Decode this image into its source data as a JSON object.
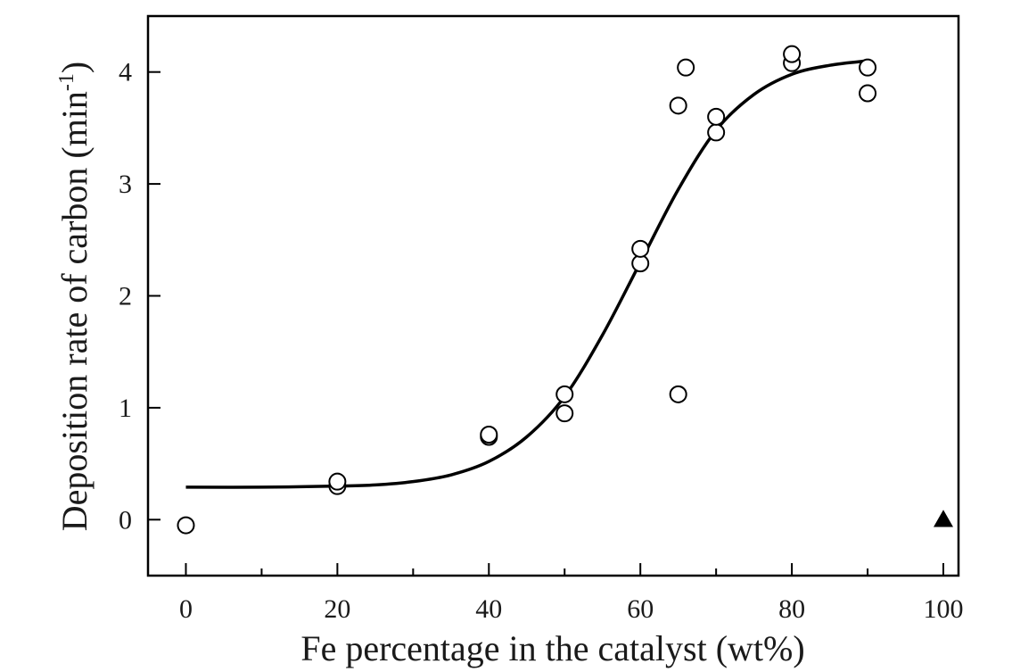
{
  "chart_data": {
    "type": "scatter",
    "title": "",
    "xlabel": "Fe percentage in the catalyst (wt%)",
    "ylabel": "Deposition rate of carbon (min",
    "ylabel_sup": "-1",
    "ylabel_close": ")",
    "xlim": [
      -5,
      102
    ],
    "ylim": [
      -0.5,
      4.5
    ],
    "xticks": [
      0,
      20,
      40,
      60,
      80,
      100
    ],
    "yticks": [
      0,
      1,
      2,
      3,
      4
    ],
    "x_minor_step": 10,
    "grid": false,
    "legend": "none",
    "series": [
      {
        "marker": "open-circle",
        "color": "#000000",
        "points": [
          {
            "x": 0,
            "y": -0.05
          },
          {
            "x": 20,
            "y": 0.3
          },
          {
            "x": 20,
            "y": 0.34
          },
          {
            "x": 40,
            "y": 0.74
          },
          {
            "x": 40,
            "y": 0.76
          },
          {
            "x": 50,
            "y": 0.95
          },
          {
            "x": 50,
            "y": 1.12
          },
          {
            "x": 60,
            "y": 2.29
          },
          {
            "x": 60,
            "y": 2.42
          },
          {
            "x": 65,
            "y": 1.12
          },
          {
            "x": 65,
            "y": 3.7
          },
          {
            "x": 66,
            "y": 4.04
          },
          {
            "x": 70,
            "y": 3.46
          },
          {
            "x": 70,
            "y": 3.6
          },
          {
            "x": 80,
            "y": 4.08
          },
          {
            "x": 80,
            "y": 4.16
          },
          {
            "x": 90,
            "y": 4.04
          },
          {
            "x": 90,
            "y": 3.81
          }
        ]
      },
      {
        "marker": "filled-triangle",
        "color": "#000000",
        "points": [
          {
            "x": 100,
            "y": 0.0
          }
        ]
      }
    ],
    "fit_curve": {
      "type": "sigmoid",
      "color": "#000000",
      "points": [
        {
          "x": 0,
          "y": 0.29
        },
        {
          "x": 10,
          "y": 0.29
        },
        {
          "x": 20,
          "y": 0.3
        },
        {
          "x": 25,
          "y": 0.31
        },
        {
          "x": 30,
          "y": 0.34
        },
        {
          "x": 35,
          "y": 0.4
        },
        {
          "x": 40,
          "y": 0.52
        },
        {
          "x": 45,
          "y": 0.74
        },
        {
          "x": 50,
          "y": 1.1
        },
        {
          "x": 55,
          "y": 1.65
        },
        {
          "x": 60,
          "y": 2.3
        },
        {
          "x": 65,
          "y": 2.95
        },
        {
          "x": 70,
          "y": 3.48
        },
        {
          "x": 75,
          "y": 3.8
        },
        {
          "x": 80,
          "y": 3.98
        },
        {
          "x": 85,
          "y": 4.06
        },
        {
          "x": 90,
          "y": 4.1
        }
      ]
    }
  }
}
